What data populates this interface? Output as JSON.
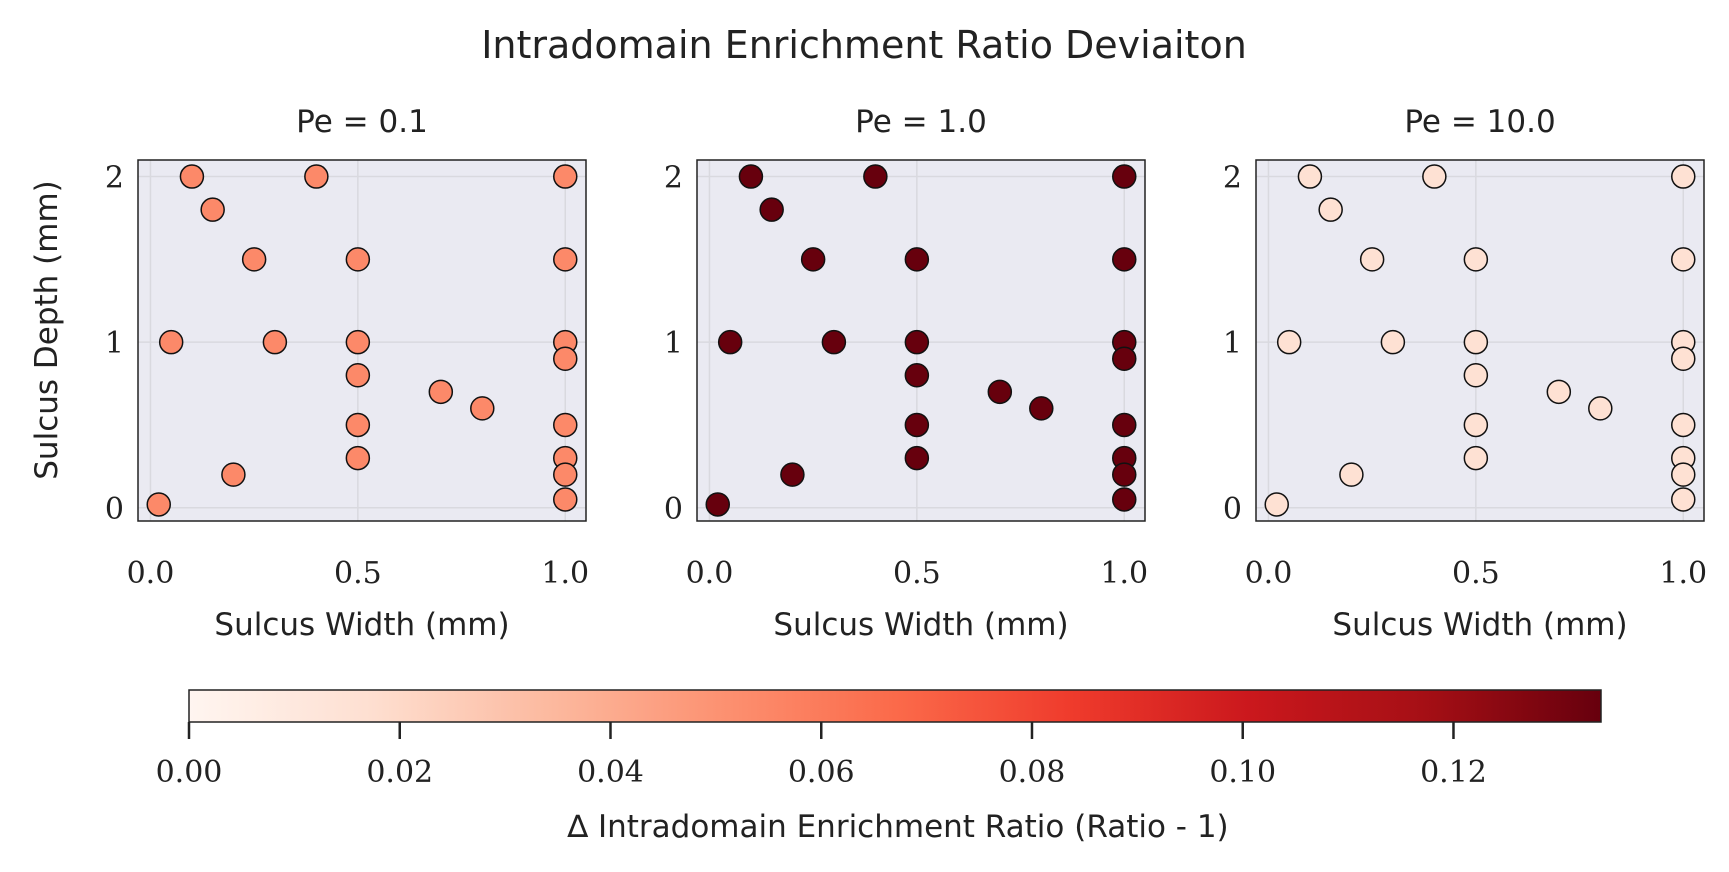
{
  "title": "Intradomain Enrichment Ratio Deviaiton",
  "shared_ylabel": "Sulcus Depth (mm)",
  "colorbar": {
    "label": "∆ Intradomain Enrichment Ratio (Ratio - 1)",
    "min": 0,
    "max": 0.134,
    "ticks": [
      "0.00",
      "0.02",
      "0.04",
      "0.06",
      "0.08",
      "0.10",
      "0.12"
    ],
    "tick_values": [
      0,
      0.02,
      0.04,
      0.06,
      0.08,
      0.1,
      0.12
    ],
    "colormap": "Reds",
    "stops": [
      "#fff5f0",
      "#fee0d2",
      "#fcbba1",
      "#fc9272",
      "#fb6a4a",
      "#ef3b2c",
      "#cb181d",
      "#a50f15",
      "#67000d"
    ]
  },
  "chart_data": [
    {
      "type": "scatter",
      "title": "Pe = 0.1",
      "xlabel": "Sulcus Width (mm)",
      "ylabel": "Sulcus Depth (mm)",
      "xlim": [
        -0.03,
        1.05
      ],
      "ylim": [
        -0.08,
        2.1
      ],
      "xticks": [
        "0.0",
        "0.5",
        "1.0"
      ],
      "xtick_values": [
        0,
        0.5,
        1
      ],
      "yticks": [
        "0",
        "1",
        "2"
      ],
      "ytick_values": [
        0,
        1,
        2
      ],
      "grid": true,
      "color_value": 0.054,
      "points": [
        [
          0.1,
          2.0
        ],
        [
          0.4,
          2.0
        ],
        [
          1.0,
          2.0
        ],
        [
          0.15,
          1.8
        ],
        [
          0.25,
          1.5
        ],
        [
          0.5,
          1.5
        ],
        [
          1.0,
          1.5
        ],
        [
          0.05,
          1.0
        ],
        [
          0.3,
          1.0
        ],
        [
          0.5,
          1.0
        ],
        [
          1.0,
          1.0
        ],
        [
          1.0,
          0.9
        ],
        [
          0.5,
          0.8
        ],
        [
          0.7,
          0.7
        ],
        [
          0.8,
          0.6
        ],
        [
          0.5,
          0.5
        ],
        [
          1.0,
          0.5
        ],
        [
          0.5,
          0.3
        ],
        [
          1.0,
          0.3
        ],
        [
          0.2,
          0.2
        ],
        [
          1.0,
          0.2
        ],
        [
          1.0,
          0.05
        ],
        [
          0.02,
          0.02
        ]
      ]
    },
    {
      "type": "scatter",
      "title": "Pe = 1.0",
      "xlabel": "Sulcus Width (mm)",
      "ylabel": "",
      "xlim": [
        -0.03,
        1.05
      ],
      "ylim": [
        -0.08,
        2.1
      ],
      "xticks": [
        "0.0",
        "0.5",
        "1.0"
      ],
      "xtick_values": [
        0,
        0.5,
        1
      ],
      "yticks": [
        "0",
        "1",
        "2"
      ],
      "ytick_values": [
        0,
        1,
        2
      ],
      "grid": true,
      "color_value": 0.134,
      "points": [
        [
          0.1,
          2.0
        ],
        [
          0.4,
          2.0
        ],
        [
          1.0,
          2.0
        ],
        [
          0.15,
          1.8
        ],
        [
          0.25,
          1.5
        ],
        [
          0.5,
          1.5
        ],
        [
          1.0,
          1.5
        ],
        [
          0.05,
          1.0
        ],
        [
          0.3,
          1.0
        ],
        [
          0.5,
          1.0
        ],
        [
          1.0,
          1.0
        ],
        [
          1.0,
          0.9
        ],
        [
          0.5,
          0.8
        ],
        [
          0.7,
          0.7
        ],
        [
          0.8,
          0.6
        ],
        [
          0.5,
          0.5
        ],
        [
          1.0,
          0.5
        ],
        [
          0.5,
          0.3
        ],
        [
          1.0,
          0.3
        ],
        [
          0.2,
          0.2
        ],
        [
          1.0,
          0.2
        ],
        [
          1.0,
          0.05
        ],
        [
          0.02,
          0.02
        ]
      ]
    },
    {
      "type": "scatter",
      "title": "Pe = 10.0",
      "xlabel": "Sulcus Width (mm)",
      "ylabel": "",
      "xlim": [
        -0.03,
        1.05
      ],
      "ylim": [
        -0.08,
        2.1
      ],
      "xticks": [
        "0.0",
        "0.5",
        "1.0"
      ],
      "xtick_values": [
        0,
        0.5,
        1
      ],
      "yticks": [
        "0",
        "1",
        "2"
      ],
      "ytick_values": [
        0,
        1,
        2
      ],
      "grid": true,
      "color_value": 0.016,
      "points": [
        [
          0.1,
          2.0
        ],
        [
          0.4,
          2.0
        ],
        [
          1.0,
          2.0
        ],
        [
          0.15,
          1.8
        ],
        [
          0.25,
          1.5
        ],
        [
          0.5,
          1.5
        ],
        [
          1.0,
          1.5
        ],
        [
          0.05,
          1.0
        ],
        [
          0.3,
          1.0
        ],
        [
          0.5,
          1.0
        ],
        [
          1.0,
          1.0
        ],
        [
          1.0,
          0.9
        ],
        [
          0.5,
          0.8
        ],
        [
          0.7,
          0.7
        ],
        [
          0.8,
          0.6
        ],
        [
          0.5,
          0.5
        ],
        [
          1.0,
          0.5
        ],
        [
          0.5,
          0.3
        ],
        [
          1.0,
          0.3
        ],
        [
          0.2,
          0.2
        ],
        [
          1.0,
          0.2
        ],
        [
          1.0,
          0.05
        ],
        [
          0.02,
          0.02
        ]
      ]
    }
  ]
}
